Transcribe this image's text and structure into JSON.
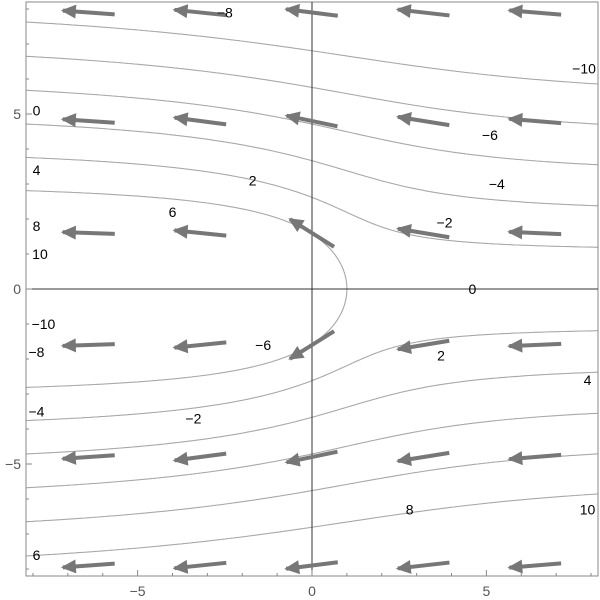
{
  "chart_data": {
    "type": "vector_field_with_contours",
    "x_range": [
      -8.2,
      8.2
    ],
    "y_range": [
      -8.2,
      8.2
    ],
    "x_ticks": [
      {
        "value": -5,
        "label": "−5"
      },
      {
        "value": 0,
        "label": "0"
      },
      {
        "value": 5,
        "label": "5"
      }
    ],
    "y_ticks": [
      {
        "value": -5,
        "label": "−5"
      },
      {
        "value": 0,
        "label": "0"
      },
      {
        "value": 5,
        "label": "5"
      }
    ],
    "contour_levels": [
      -10,
      -8,
      -6,
      -4,
      -2,
      0,
      2,
      4,
      6,
      8,
      10
    ],
    "contour_labels": [
      {
        "text": "−8",
        "x": -2.5,
        "y": 7.9
      },
      {
        "text": "−10",
        "x": 7.8,
        "y": 6.3
      },
      {
        "text": "0",
        "x": -7.9,
        "y": 5.1
      },
      {
        "text": "−6",
        "x": 5.1,
        "y": 4.4
      },
      {
        "text": "4",
        "x": -7.9,
        "y": 3.4
      },
      {
        "text": "2",
        "x": -1.7,
        "y": 3.1
      },
      {
        "text": "−4",
        "x": 5.3,
        "y": 3.0
      },
      {
        "text": "6",
        "x": -4.0,
        "y": 2.2
      },
      {
        "text": "−2",
        "x": 3.8,
        "y": 1.9
      },
      {
        "text": "8",
        "x": -7.9,
        "y": 1.8
      },
      {
        "text": "10",
        "x": -7.8,
        "y": 1.0
      },
      {
        "text": "0",
        "x": 4.6,
        "y": 0.0
      },
      {
        "text": "−10",
        "x": -7.7,
        "y": -1.0
      },
      {
        "text": "−8",
        "x": -7.9,
        "y": -1.8
      },
      {
        "text": "−6",
        "x": -1.4,
        "y": -1.6
      },
      {
        "text": "2",
        "x": 3.7,
        "y": -1.9
      },
      {
        "text": "4",
        "x": 7.9,
        "y": -2.6
      },
      {
        "text": "−4",
        "x": -7.9,
        "y": -3.5
      },
      {
        "text": "−2",
        "x": -3.4,
        "y": -3.7
      },
      {
        "text": "8",
        "x": 2.8,
        "y": -6.3
      },
      {
        "text": "10",
        "x": 7.9,
        "y": -6.3
      },
      {
        "text": "6",
        "x": -7.9,
        "y": -7.6
      }
    ],
    "vector_grid": {
      "x": [
        -6.4,
        -3.2,
        0,
        3.2,
        6.4
      ],
      "y": [
        7.9,
        4.8,
        1.6,
        -1.6,
        -4.8,
        -7.9
      ]
    },
    "colors": {
      "contour": "#a8a8a8",
      "arrow": "#777777",
      "axis": "#333333",
      "frame": "#888888"
    }
  }
}
